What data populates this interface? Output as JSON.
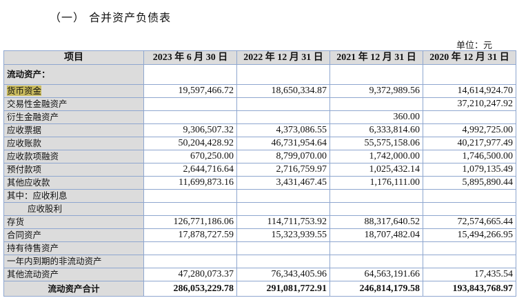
{
  "title": "（一） 合并资产负债表",
  "unit": "单位：元",
  "table": {
    "headers": [
      "项目",
      "2023 年 6 月 30 日",
      "2022 年 12 月 31 日",
      "2021 年 12 月 31 日",
      "2020 年 12 月 31 日"
    ],
    "section": "流动资产：",
    "rows": [
      {
        "label": "货币资金",
        "values": [
          "19,597,466.72",
          "18,650,334.87",
          "9,372,989.56",
          "14,614,924.70"
        ],
        "highlight": true
      },
      {
        "label": "交易性金融资产",
        "values": [
          "",
          "",
          "",
          "37,210,247.92"
        ]
      },
      {
        "label": "衍生金融资产",
        "values": [
          "",
          "",
          "360.00",
          ""
        ]
      },
      {
        "label": "应收票据",
        "values": [
          "9,306,507.32",
          "4,373,086.55",
          "6,333,814.60",
          "4,992,725.00"
        ]
      },
      {
        "label": "应收账款",
        "values": [
          "50,204,428.92",
          "46,731,954.64",
          "55,575,158.06",
          "40,217,977.49"
        ]
      },
      {
        "label": "应收款项融资",
        "values": [
          "670,250.00",
          "8,799,070.00",
          "1,742,000.00",
          "1,746,500.00"
        ]
      },
      {
        "label": "预付款项",
        "values": [
          "2,644,716.64",
          "2,716,759.97",
          "1,025,432.14",
          "1,079,135.49"
        ]
      },
      {
        "label": "其他应收款",
        "values": [
          "11,699,873.16",
          "3,431,467.45",
          "1,176,111.00",
          "5,895,890.44"
        ]
      },
      {
        "label": "其中：应收利息",
        "values": [
          "",
          "",
          "",
          ""
        ]
      },
      {
        "label": "应收股利",
        "values": [
          "",
          "",
          "",
          ""
        ],
        "indent": true
      },
      {
        "label": "存货",
        "values": [
          "126,771,186.06",
          "114,711,753.92",
          "88,317,640.52",
          "72,574,665.44"
        ]
      },
      {
        "label": "合同资产",
        "values": [
          "17,878,727.59",
          "15,323,939.55",
          "18,707,482.04",
          "15,494,266.95"
        ]
      },
      {
        "label": "持有待售资产",
        "values": [
          "",
          "",
          "",
          ""
        ]
      },
      {
        "label": "一年内到期的非流动资产",
        "values": [
          "",
          "",
          "",
          ""
        ]
      },
      {
        "label": "其他流动资产",
        "values": [
          "47,280,073.37",
          "76,343,405.96",
          "64,563,191.66",
          "17,435.54"
        ]
      }
    ],
    "total": {
      "label": "流动资产合计",
      "values": [
        "286,053,229.78",
        "291,081,772.91",
        "246,814,179.58",
        "193,843,768.97"
      ]
    }
  },
  "colors": {
    "border": "#8ea6cf",
    "label_bg": "#dcdcdc",
    "highlight": "#c9bb5e"
  }
}
